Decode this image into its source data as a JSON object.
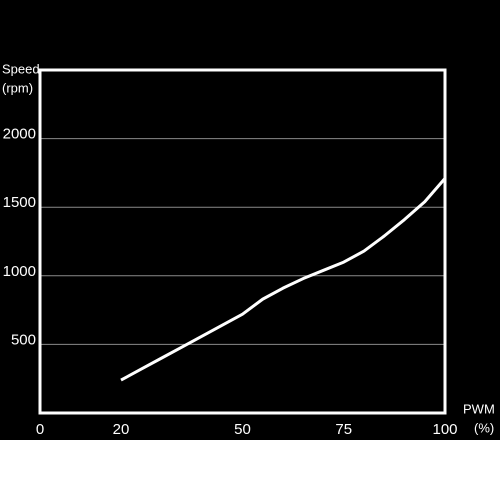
{
  "chart_data": {
    "type": "line",
    "y_label": [
      "Speed",
      "(rpm)"
    ],
    "x_label": [
      "PWM",
      "(%)"
    ],
    "x": [
      20,
      25,
      30,
      35,
      40,
      45,
      50,
      55,
      60,
      65,
      70,
      75,
      80,
      85,
      90,
      95,
      100
    ],
    "series": [
      {
        "name": "Speed",
        "color": "#ffffff",
        "values": [
          240,
          320,
          400,
          480,
          560,
          640,
          720,
          830,
          910,
          980,
          1040,
          1100,
          1180,
          1290,
          1410,
          1540,
          1710
        ]
      }
    ],
    "xlim": [
      0,
      100
    ],
    "xticks": [
      0,
      20,
      50,
      75,
      100
    ],
    "ylim": [
      0,
      2500
    ],
    "yticks": [
      500,
      1000,
      1500,
      2000
    ],
    "grid": true
  }
}
